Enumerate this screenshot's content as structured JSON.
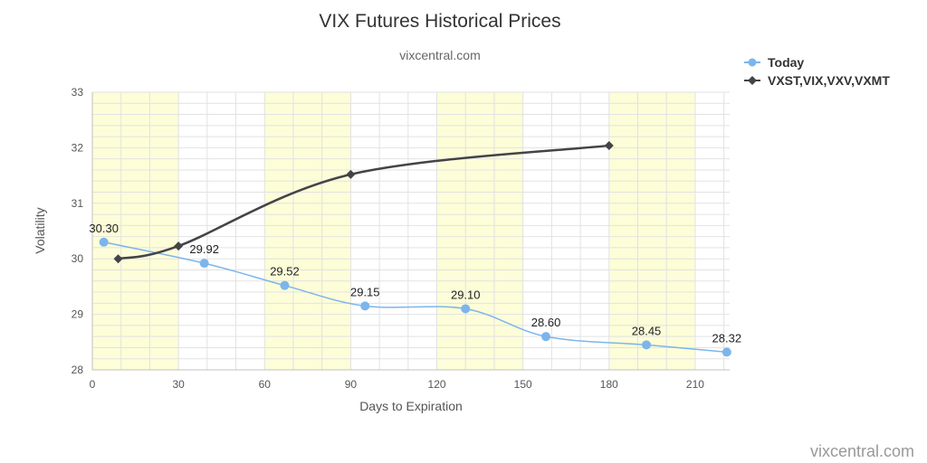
{
  "chart_data": {
    "type": "line",
    "title": "VIX Futures Historical Prices",
    "subtitle": "vixcentral.com",
    "xlabel": "Days to Expiration",
    "ylabel": "Volatility",
    "xlim": [
      0,
      222
    ],
    "ylim": [
      28,
      33
    ],
    "x_ticks": [
      0,
      30,
      60,
      90,
      120,
      150,
      180,
      210
    ],
    "y_ticks": [
      28,
      29,
      30,
      31,
      32,
      33
    ],
    "shaded_bands": [
      [
        0,
        30
      ],
      [
        60,
        90
      ],
      [
        120,
        150
      ],
      [
        180,
        210
      ]
    ],
    "grid": true,
    "legend_position": "top-right",
    "series": [
      {
        "name": "Today",
        "color": "#7cb5ec",
        "marker": "circle",
        "x": [
          4,
          39,
          67,
          95,
          130,
          158,
          193,
          221
        ],
        "y": [
          30.3,
          29.92,
          29.52,
          29.15,
          29.1,
          28.6,
          28.45,
          28.32
        ],
        "labels": [
          "30.30",
          "29.92",
          "29.52",
          "29.15",
          "29.10",
          "28.60",
          "28.45",
          "28.32"
        ]
      },
      {
        "name": "VXST,VIX,VXV,VXMT",
        "color": "#434348",
        "marker": "diamond",
        "x": [
          9,
          30,
          90,
          180
        ],
        "y": [
          30.0,
          30.23,
          31.52,
          32.04
        ],
        "labels": []
      }
    ]
  },
  "credit": "vixcentral.com"
}
